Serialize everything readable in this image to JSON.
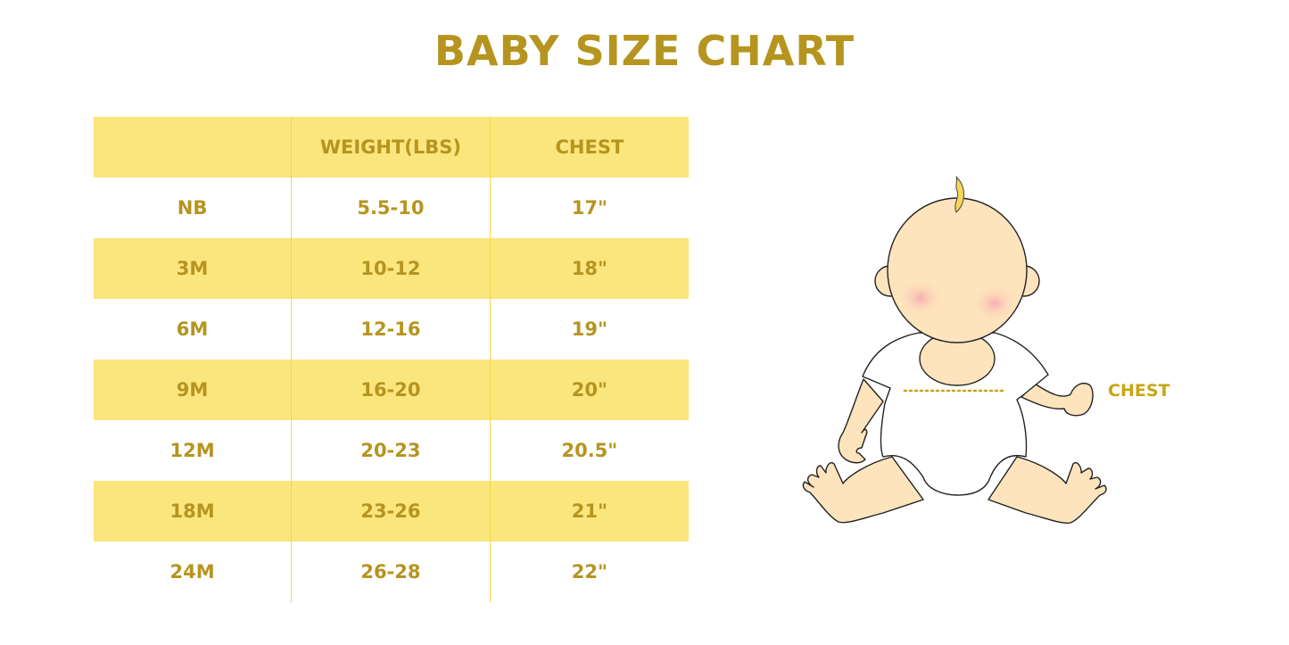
{
  "title": "BABY SIZE CHART",
  "table": {
    "headers": [
      "",
      "WEIGHT(LBS)",
      "CHEST"
    ],
    "rows": [
      [
        "NB",
        "5.5-10",
        "17\""
      ],
      [
        "3M",
        "10-12",
        "18\""
      ],
      [
        "6M",
        "12-16",
        "19\""
      ],
      [
        "9M",
        "16-20",
        "20\""
      ],
      [
        "12M",
        "20-23",
        "20.5\""
      ],
      [
        "18M",
        "23-26",
        "21\""
      ],
      [
        "24M",
        "26-28",
        "22\""
      ]
    ]
  },
  "illustration": {
    "chest_label": "CHEST"
  },
  "colors": {
    "text": "#b5951f",
    "row_highlight": "#fbe57d",
    "skin": "#fde4bd",
    "hair": "#f5d75a",
    "chest_line": "#c9a514"
  }
}
